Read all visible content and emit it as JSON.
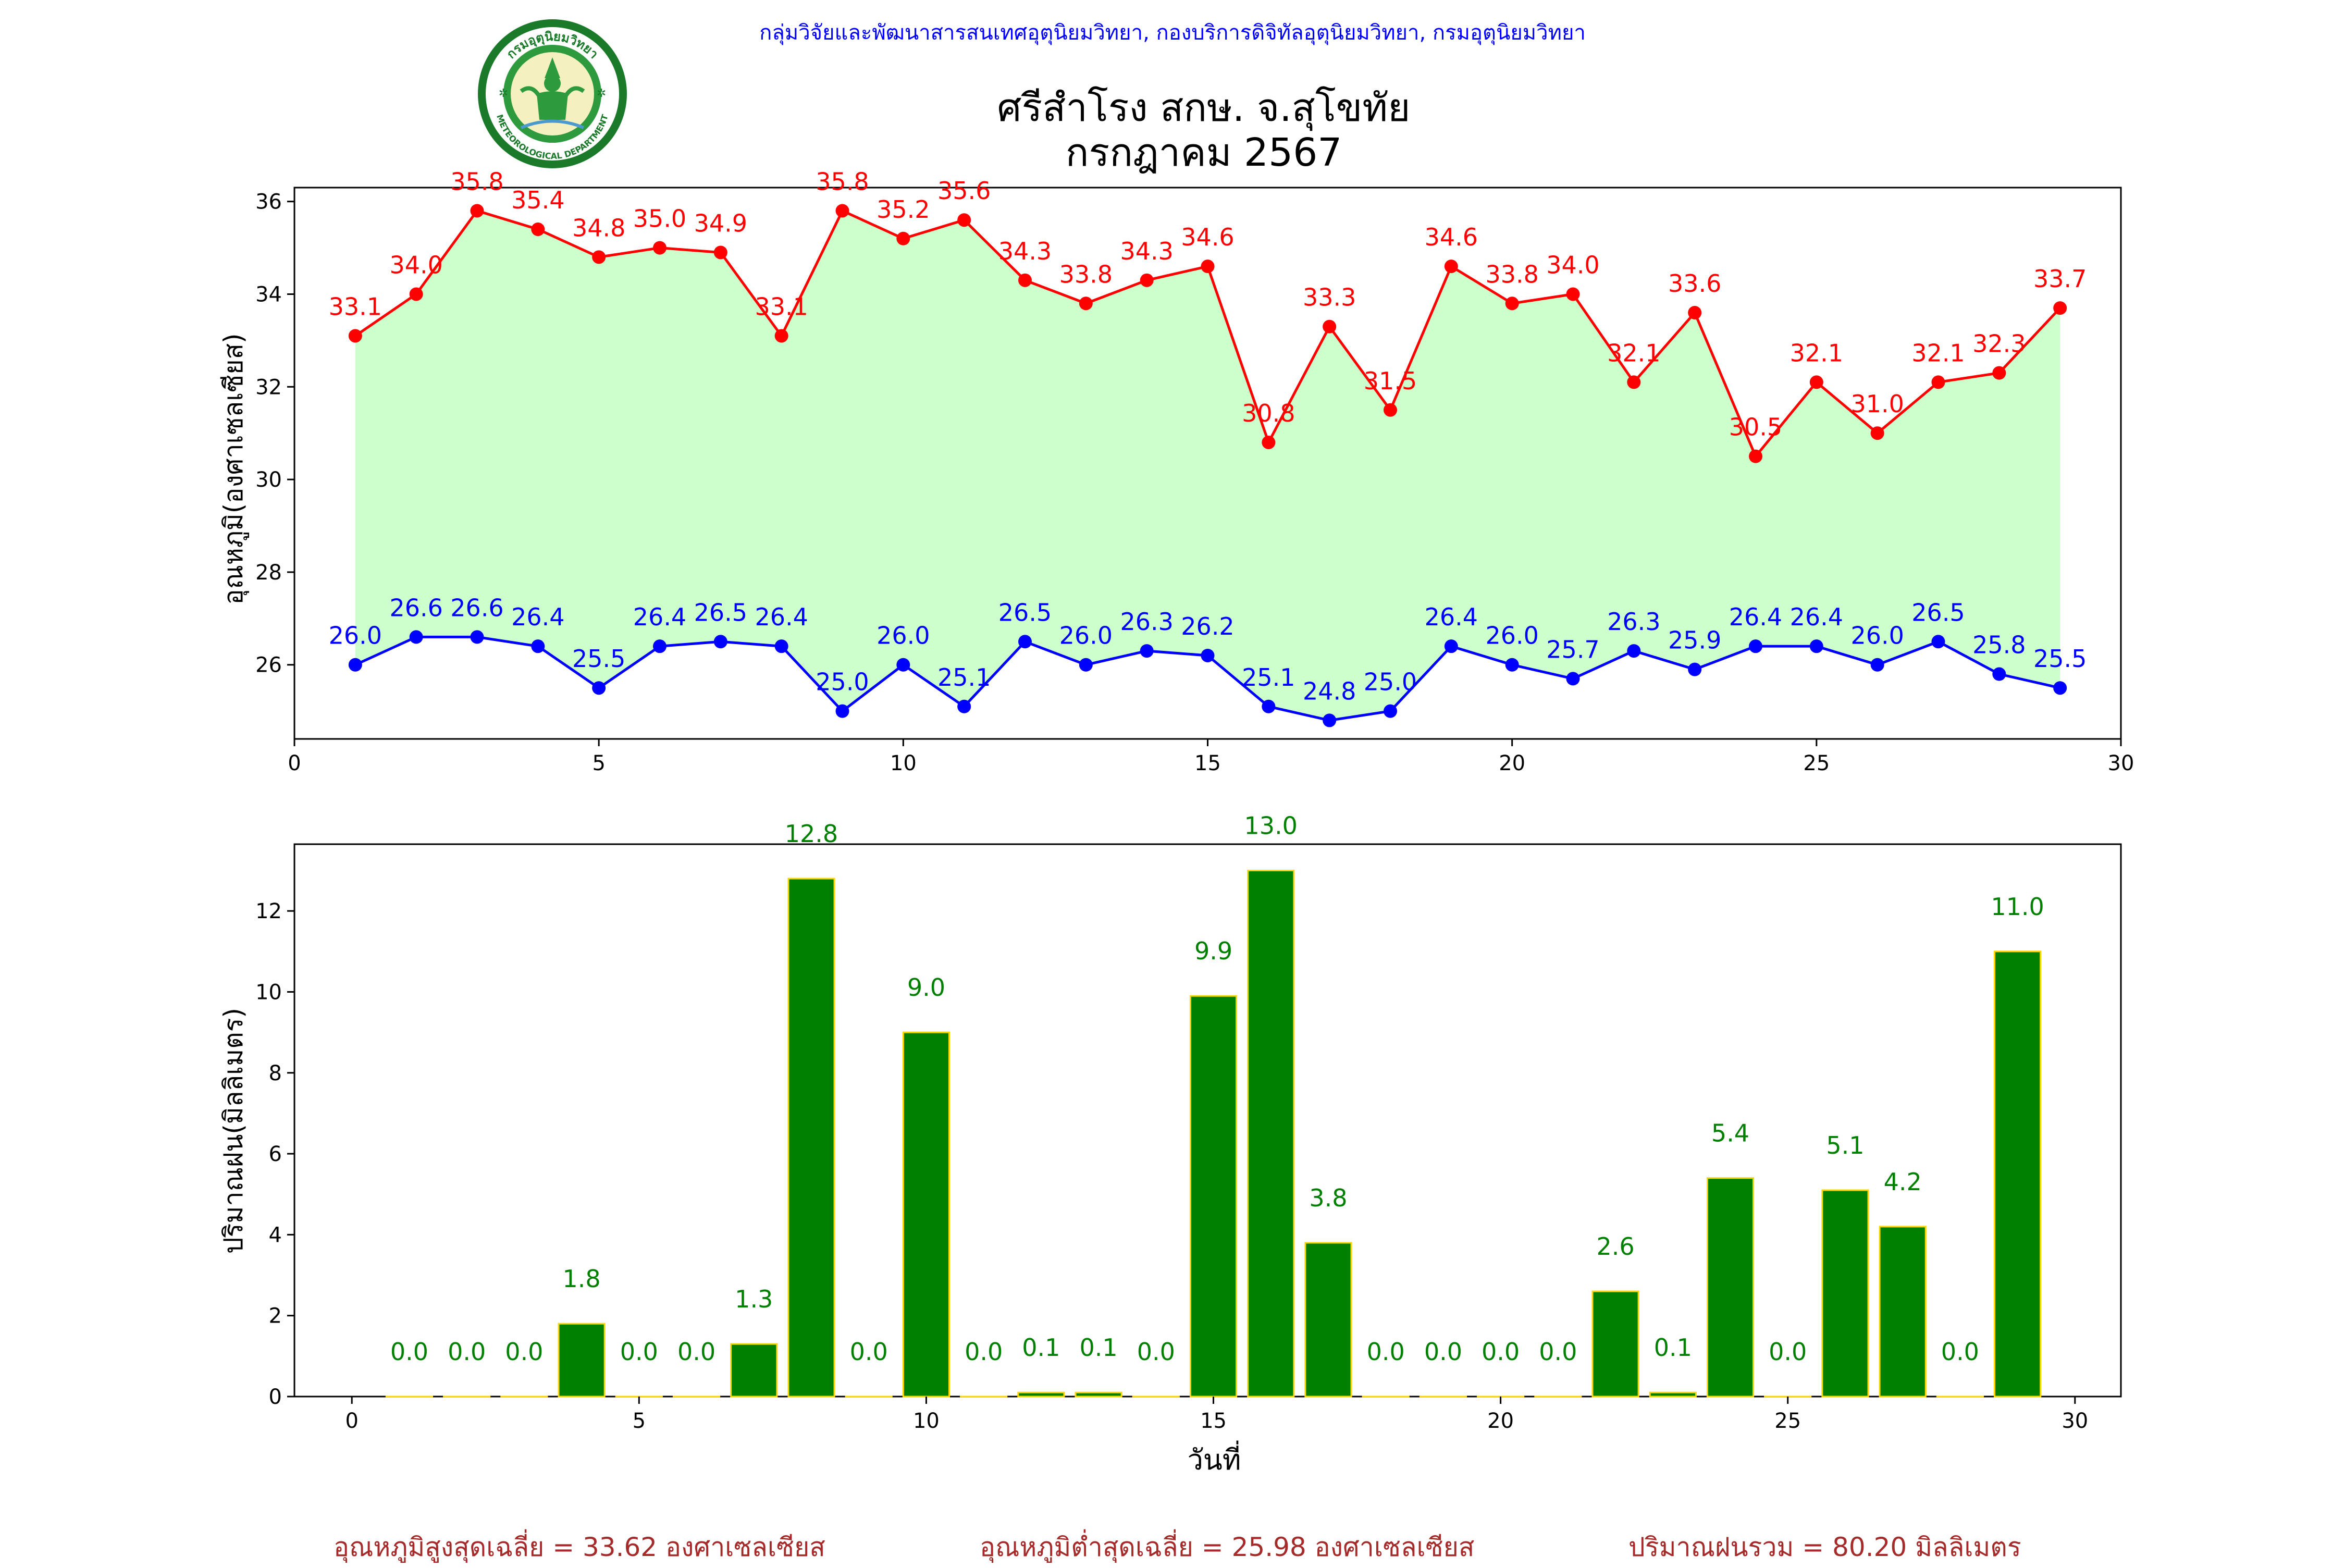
{
  "header": {
    "agency_line": "กลุ่มวิจัยและพัฒนาสารสนเทศอุตุนิยมวิทยา, กองบริการดิจิทัลอุตุนิยมวิทยา, กรมอุตุนิยมวิทยา",
    "title_line1": "ศรีสำโรง สกษ. จ.สุโขทัย",
    "title_line2": "กรกฎาคม 2567",
    "logo": {
      "icon": "meteorological-department-seal",
      "text_top": "กรมอุตุนิยมวิทยา",
      "text_bottom": "METEOROLOGICAL DEPARTMENT"
    }
  },
  "colors": {
    "max_line": "#ff0000",
    "min_line": "#0000ff",
    "fill": "#ccffcc",
    "rain_bar": "#008000",
    "rain_edge": "#ffd700",
    "rain_label": "#008000",
    "footer": "#a52a2a"
  },
  "chart_data": [
    {
      "type": "line",
      "ylabel": "อุณหภูมิ(องศาเซลเซียส)",
      "xlim": [
        0,
        30
      ],
      "ylim": [
        24.4,
        36.3
      ],
      "xticks": [
        0,
        5,
        10,
        15,
        20,
        25,
        30
      ],
      "yticks": [
        26,
        28,
        30,
        32,
        34,
        36
      ],
      "x": [
        1,
        2,
        3,
        4,
        5,
        6,
        7,
        8,
        9,
        10,
        11,
        12,
        13,
        14,
        15,
        16,
        17,
        18,
        19,
        20,
        21,
        22,
        23,
        24,
        25,
        26,
        27,
        28,
        29
      ],
      "series": [
        {
          "key": "max",
          "values": [
            33.1,
            34.0,
            35.8,
            35.4,
            34.8,
            35.0,
            34.9,
            33.1,
            35.8,
            35.2,
            35.6,
            34.3,
            33.8,
            34.3,
            34.6,
            30.8,
            33.3,
            31.5,
            34.6,
            33.8,
            34.0,
            32.1,
            33.6,
            30.5,
            32.1,
            31.0,
            32.1,
            32.3,
            33.7
          ]
        },
        {
          "key": "min",
          "values": [
            26.0,
            26.6,
            26.6,
            26.4,
            25.5,
            26.4,
            26.5,
            26.4,
            25.0,
            26.0,
            25.1,
            26.5,
            26.0,
            26.3,
            26.2,
            25.1,
            24.8,
            25.0,
            26.4,
            26.0,
            25.7,
            26.3,
            25.9,
            26.4,
            26.4,
            26.0,
            26.5,
            25.8,
            25.5
          ]
        }
      ]
    },
    {
      "type": "bar",
      "xlabel": "วันที่",
      "ylabel": "ปริมาณฝน(มิลลิเมตร)",
      "xlim": [
        -1,
        30.8
      ],
      "ylim": [
        0,
        13.65
      ],
      "xticks": [
        0,
        5,
        10,
        15,
        20,
        25,
        30
      ],
      "yticks": [
        0,
        2,
        4,
        6,
        8,
        10,
        12
      ],
      "x": [
        1,
        2,
        3,
        4,
        5,
        6,
        7,
        8,
        9,
        10,
        11,
        12,
        13,
        14,
        15,
        16,
        17,
        18,
        19,
        20,
        21,
        22,
        23,
        24,
        25,
        26,
        27,
        28,
        29
      ],
      "values": [
        0.0,
        0.0,
        0.0,
        1.8,
        0.0,
        0.0,
        1.3,
        12.8,
        0.0,
        9.0,
        0.0,
        0.1,
        0.1,
        0.0,
        9.9,
        13.0,
        3.8,
        0.0,
        0.0,
        0.0,
        0.0,
        2.6,
        0.1,
        5.4,
        0.0,
        5.1,
        4.2,
        0.0,
        11.0
      ]
    }
  ],
  "footer": {
    "avg_max": "อุณหภูมิสูงสุดเฉลี่ย = 33.62 องศาเซลเซียส",
    "avg_min": "อุณหภูมิต่ำสุดเฉลี่ย = 25.98 องศาเซลเซียส",
    "total_rain": "ปริมาณฝนรวม = 80.20 มิลลิเมตร"
  }
}
